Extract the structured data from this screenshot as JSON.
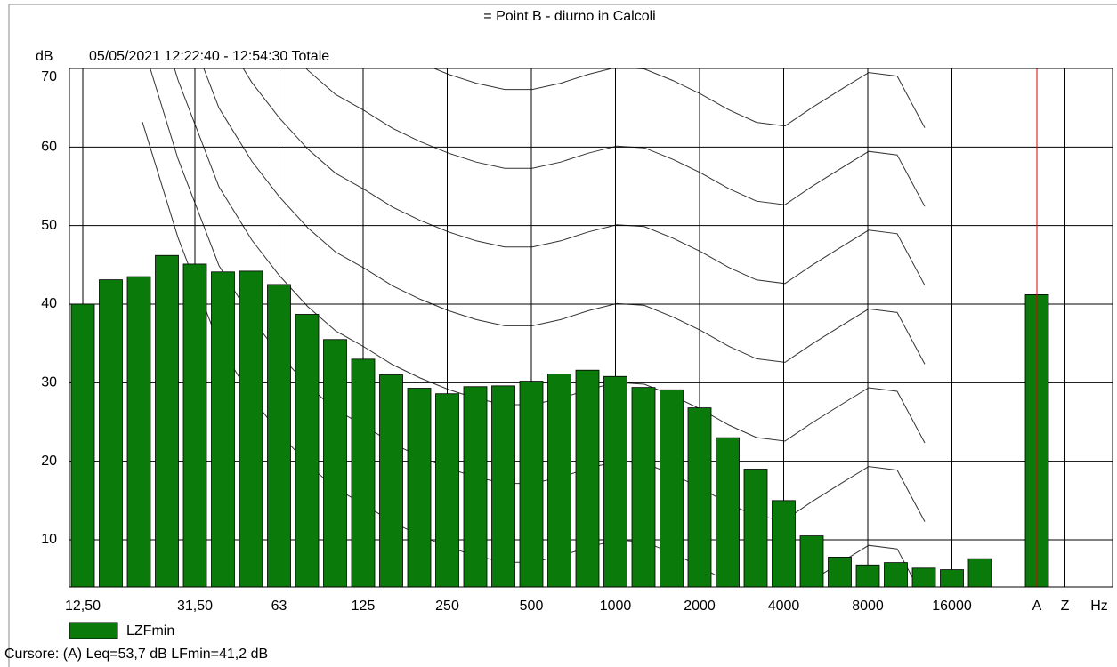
{
  "chart_data": {
    "type": "bar",
    "title": "= Point B - diurno in Calcoli",
    "subtitle": "05/05/2021 12:22:40 - 12:54:30  Totale",
    "y_label": "dB",
    "x_label": "Hz",
    "categories": [
      "12,50",
      null,
      null,
      null,
      "31,50",
      null,
      null,
      "63",
      null,
      null,
      "125",
      null,
      null,
      "250",
      null,
      null,
      "500",
      null,
      null,
      "1000",
      null,
      null,
      "2000",
      null,
      null,
      "4000",
      null,
      null,
      "8000",
      null,
      null,
      "16000",
      null,
      "A",
      "Z"
    ],
    "series": [
      {
        "name": "LZFmin",
        "color": "#0a7a0a",
        "values": [
          40,
          43.1,
          43.5,
          46.2,
          45.1,
          44.1,
          44.2,
          42.5,
          38.7,
          35.5,
          33,
          31,
          29.3,
          28.6,
          29.5,
          29.6,
          30.2,
          31.1,
          31.6,
          30.8,
          29.4,
          29.1,
          26.8,
          23,
          19,
          15,
          10.5,
          7.8,
          6.8,
          7.1,
          6.4,
          6.2,
          7.6,
          41.2,
          null
        ]
      }
    ],
    "ylim": [
      4,
      70
    ],
    "yticks": [
      10,
      20,
      30,
      40,
      50,
      60,
      70
    ],
    "grid": true,
    "footer": "Cursore: (A)  Leq=53,7 dB  LFmin=41,2 dB"
  }
}
